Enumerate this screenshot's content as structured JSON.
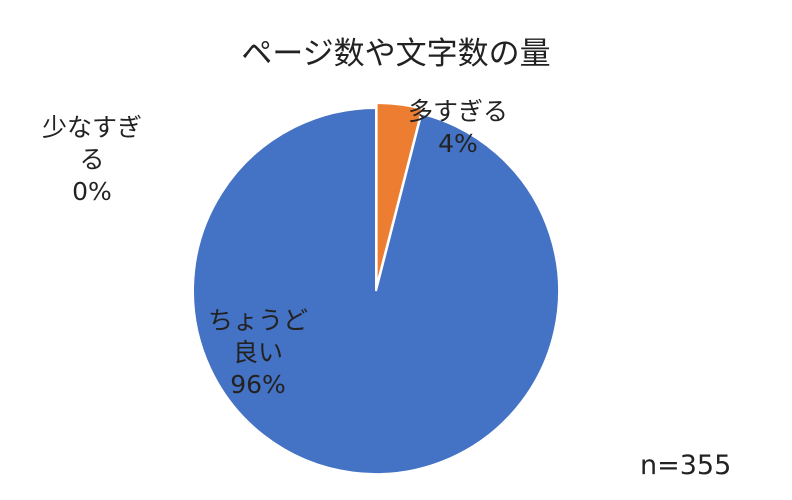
{
  "chart_data": {
    "type": "pie",
    "title": "ページ数や文字数の量",
    "categories": [
      "多すぎる",
      "ちょうど良い",
      "少なすぎる"
    ],
    "values": [
      4,
      96,
      0
    ],
    "value_labels": [
      "4%",
      "96%",
      "0%"
    ],
    "colors": [
      "#ED7D31",
      "#4472C4",
      "#A5A5A5"
    ],
    "annotation": "n=355"
  }
}
